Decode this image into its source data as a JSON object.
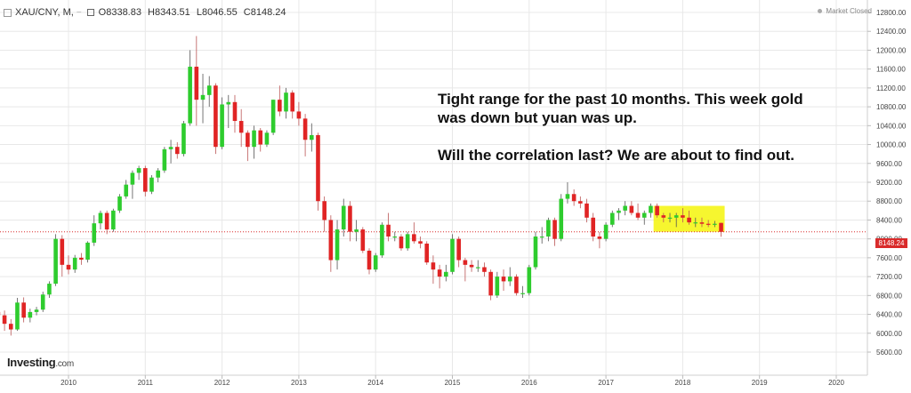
{
  "header": {
    "symbol": "XAU/CNY, M,",
    "ohlc": {
      "open": "O8338.83",
      "high": "H8343.51",
      "low": "L8046.55",
      "close": "C8148.24"
    }
  },
  "market_status": "Market Closed",
  "annotation": {
    "line1": "Tight range for the past 10 months. This week gold",
    "line2": "was down but yuan was up.",
    "line3": "Will the correlation last? We are about to find out."
  },
  "brand": {
    "name": "Investing",
    "suffix": ".com"
  },
  "last_price_label": "8148.24",
  "colors": {
    "up": "#2ecc2e",
    "down": "#e02424",
    "highlight": "#f5f50a",
    "price_line": "#d92b2b",
    "grid": "#e8e8e8"
  },
  "chart_data": {
    "type": "candlestick",
    "interval": "monthly",
    "title": "XAU/CNY, M,",
    "ylim": [
      5600,
      12800
    ],
    "y_ticks": [
      "12800.00",
      "12400.00",
      "12000.00",
      "11600.00",
      "11200.00",
      "10800.00",
      "10400.00",
      "10000.00",
      "9600.00",
      "9200.00",
      "8800.00",
      "8400.00",
      "8000.00",
      "7600.00",
      "7200.00",
      "6800.00",
      "6400.00",
      "6000.00",
      "5600.00"
    ],
    "x_ticks": [
      "2010",
      "2011",
      "2012",
      "2013",
      "2014",
      "2015",
      "2016",
      "2017",
      "2018",
      "2019",
      "2020"
    ],
    "last_price": 8148.24,
    "highlight_range": {
      "from": "2017-09",
      "to": "2018-07",
      "low": 8150,
      "high": 8700
    },
    "candles": [
      {
        "date": "2009-01",
        "o": 6250,
        "h": 6680,
        "l": 6180,
        "c": 6450
      },
      {
        "date": "2009-02",
        "o": 6450,
        "h": 6700,
        "l": 6300,
        "c": 6380
      },
      {
        "date": "2009-03",
        "o": 6380,
        "h": 6480,
        "l": 6050,
        "c": 6200
      },
      {
        "date": "2009-04",
        "o": 6200,
        "h": 6300,
        "l": 5950,
        "c": 6080
      },
      {
        "date": "2009-05",
        "o": 6080,
        "h": 6750,
        "l": 6050,
        "c": 6650
      },
      {
        "date": "2009-06",
        "o": 6650,
        "h": 6760,
        "l": 6230,
        "c": 6330
      },
      {
        "date": "2009-07",
        "o": 6330,
        "h": 6520,
        "l": 6230,
        "c": 6450
      },
      {
        "date": "2009-08",
        "o": 6450,
        "h": 6560,
        "l": 6380,
        "c": 6500
      },
      {
        "date": "2009-09",
        "o": 6500,
        "h": 6880,
        "l": 6450,
        "c": 6820
      },
      {
        "date": "2009-10",
        "o": 6820,
        "h": 7100,
        "l": 6750,
        "c": 7050
      },
      {
        "date": "2009-11",
        "o": 7050,
        "h": 8100,
        "l": 7000,
        "c": 8000
      },
      {
        "date": "2009-12",
        "o": 8000,
        "h": 8080,
        "l": 7200,
        "c": 7450
      },
      {
        "date": "2010-01",
        "o": 7450,
        "h": 7650,
        "l": 7250,
        "c": 7350
      },
      {
        "date": "2010-02",
        "o": 7350,
        "h": 7660,
        "l": 7280,
        "c": 7600
      },
      {
        "date": "2010-03",
        "o": 7600,
        "h": 7700,
        "l": 7450,
        "c": 7560
      },
      {
        "date": "2010-04",
        "o": 7560,
        "h": 7950,
        "l": 7500,
        "c": 7920
      },
      {
        "date": "2010-05",
        "o": 7920,
        "h": 8500,
        "l": 7850,
        "c": 8330
      },
      {
        "date": "2010-06",
        "o": 8330,
        "h": 8600,
        "l": 8200,
        "c": 8550
      },
      {
        "date": "2010-07",
        "o": 8550,
        "h": 8600,
        "l": 8100,
        "c": 8200
      },
      {
        "date": "2010-08",
        "o": 8200,
        "h": 8640,
        "l": 8150,
        "c": 8600
      },
      {
        "date": "2010-09",
        "o": 8600,
        "h": 8950,
        "l": 8550,
        "c": 8900
      },
      {
        "date": "2010-10",
        "o": 8900,
        "h": 9250,
        "l": 8850,
        "c": 9150
      },
      {
        "date": "2010-11",
        "o": 9150,
        "h": 9450,
        "l": 8850,
        "c": 9400
      },
      {
        "date": "2010-12",
        "o": 9400,
        "h": 9550,
        "l": 9250,
        "c": 9500
      },
      {
        "date": "2011-01",
        "o": 9500,
        "h": 9550,
        "l": 8900,
        "c": 9000
      },
      {
        "date": "2011-02",
        "o": 9000,
        "h": 9350,
        "l": 8950,
        "c": 9300
      },
      {
        "date": "2011-03",
        "o": 9300,
        "h": 9500,
        "l": 9200,
        "c": 9450
      },
      {
        "date": "2011-04",
        "o": 9450,
        "h": 9950,
        "l": 9400,
        "c": 9900
      },
      {
        "date": "2011-05",
        "o": 9900,
        "h": 10100,
        "l": 9600,
        "c": 9950
      },
      {
        "date": "2011-06",
        "o": 9950,
        "h": 10050,
        "l": 9700,
        "c": 9800
      },
      {
        "date": "2011-07",
        "o": 9800,
        "h": 10500,
        "l": 9750,
        "c": 10450
      },
      {
        "date": "2011-08",
        "o": 10450,
        "h": 12000,
        "l": 10400,
        "c": 11650
      },
      {
        "date": "2011-09",
        "o": 11650,
        "h": 12300,
        "l": 10400,
        "c": 10950
      },
      {
        "date": "2011-10",
        "o": 10950,
        "h": 11500,
        "l": 10450,
        "c": 11050
      },
      {
        "date": "2011-11",
        "o": 11050,
        "h": 11450,
        "l": 10800,
        "c": 11250
      },
      {
        "date": "2011-12",
        "o": 11250,
        "h": 11300,
        "l": 9800,
        "c": 9950
      },
      {
        "date": "2012-01",
        "o": 9950,
        "h": 11000,
        "l": 9900,
        "c": 10850
      },
      {
        "date": "2012-02",
        "o": 10850,
        "h": 11050,
        "l": 10350,
        "c": 10900
      },
      {
        "date": "2012-03",
        "o": 10900,
        "h": 11050,
        "l": 10250,
        "c": 10500
      },
      {
        "date": "2012-04",
        "o": 10500,
        "h": 10750,
        "l": 9950,
        "c": 10250
      },
      {
        "date": "2012-05",
        "o": 10250,
        "h": 10300,
        "l": 9650,
        "c": 9950
      },
      {
        "date": "2012-06",
        "o": 9950,
        "h": 10400,
        "l": 9700,
        "c": 10300
      },
      {
        "date": "2012-07",
        "o": 10300,
        "h": 10350,
        "l": 9850,
        "c": 10000
      },
      {
        "date": "2012-08",
        "o": 10000,
        "h": 10300,
        "l": 9950,
        "c": 10250
      },
      {
        "date": "2012-09",
        "o": 10250,
        "h": 10950,
        "l": 10200,
        "c": 10950
      },
      {
        "date": "2012-10",
        "o": 10950,
        "h": 11250,
        "l": 10600,
        "c": 10700
      },
      {
        "date": "2012-11",
        "o": 10700,
        "h": 11200,
        "l": 10550,
        "c": 11100
      },
      {
        "date": "2012-12",
        "o": 11100,
        "h": 11150,
        "l": 10550,
        "c": 10700
      },
      {
        "date": "2013-01",
        "o": 10700,
        "h": 10900,
        "l": 10400,
        "c": 10550
      },
      {
        "date": "2013-02",
        "o": 10550,
        "h": 10650,
        "l": 9750,
        "c": 10100
      },
      {
        "date": "2013-03",
        "o": 10100,
        "h": 10450,
        "l": 9850,
        "c": 10200
      },
      {
        "date": "2013-04",
        "o": 10200,
        "h": 10250,
        "l": 8600,
        "c": 8800
      },
      {
        "date": "2013-05",
        "o": 8800,
        "h": 8900,
        "l": 8150,
        "c": 8400
      },
      {
        "date": "2013-06",
        "o": 8400,
        "h": 8500,
        "l": 7300,
        "c": 7550
      },
      {
        "date": "2013-07",
        "o": 7550,
        "h": 8400,
        "l": 7350,
        "c": 8200
      },
      {
        "date": "2013-08",
        "o": 8200,
        "h": 8850,
        "l": 8050,
        "c": 8700
      },
      {
        "date": "2013-09",
        "o": 8700,
        "h": 8800,
        "l": 7950,
        "c": 8150
      },
      {
        "date": "2013-10",
        "o": 8150,
        "h": 8400,
        "l": 7950,
        "c": 8200
      },
      {
        "date": "2013-11",
        "o": 8200,
        "h": 8250,
        "l": 7700,
        "c": 7750
      },
      {
        "date": "2013-12",
        "o": 7750,
        "h": 7800,
        "l": 7250,
        "c": 7350
      },
      {
        "date": "2014-01",
        "o": 7350,
        "h": 7700,
        "l": 7300,
        "c": 7650
      },
      {
        "date": "2014-02",
        "o": 7650,
        "h": 8350,
        "l": 7600,
        "c": 8300
      },
      {
        "date": "2014-03",
        "o": 8300,
        "h": 8550,
        "l": 7950,
        "c": 8050
      },
      {
        "date": "2014-04",
        "o": 8050,
        "h": 8150,
        "l": 7950,
        "c": 8050
      },
      {
        "date": "2014-05",
        "o": 8050,
        "h": 8100,
        "l": 7750,
        "c": 7800
      },
      {
        "date": "2014-06",
        "o": 7800,
        "h": 8150,
        "l": 7750,
        "c": 8100
      },
      {
        "date": "2014-07",
        "o": 8100,
        "h": 8350,
        "l": 7900,
        "c": 7950
      },
      {
        "date": "2014-08",
        "o": 7950,
        "h": 8050,
        "l": 7800,
        "c": 7900
      },
      {
        "date": "2014-09",
        "o": 7900,
        "h": 7950,
        "l": 7450,
        "c": 7500
      },
      {
        "date": "2014-10",
        "o": 7500,
        "h": 7650,
        "l": 7050,
        "c": 7350
      },
      {
        "date": "2014-11",
        "o": 7350,
        "h": 7450,
        "l": 6950,
        "c": 7200
      },
      {
        "date": "2014-12",
        "o": 7200,
        "h": 7450,
        "l": 7100,
        "c": 7300
      },
      {
        "date": "2015-01",
        "o": 7300,
        "h": 8100,
        "l": 7250,
        "c": 8000
      },
      {
        "date": "2015-02",
        "o": 8000,
        "h": 8050,
        "l": 7400,
        "c": 7550
      },
      {
        "date": "2015-03",
        "o": 7550,
        "h": 7600,
        "l": 7100,
        "c": 7450
      },
      {
        "date": "2015-04",
        "o": 7450,
        "h": 7550,
        "l": 7300,
        "c": 7400
      },
      {
        "date": "2015-05",
        "o": 7400,
        "h": 7550,
        "l": 7300,
        "c": 7400
      },
      {
        "date": "2015-06",
        "o": 7400,
        "h": 7500,
        "l": 7200,
        "c": 7300
      },
      {
        "date": "2015-07",
        "o": 7300,
        "h": 7350,
        "l": 6700,
        "c": 6800
      },
      {
        "date": "2015-08",
        "o": 6800,
        "h": 7300,
        "l": 6750,
        "c": 7200
      },
      {
        "date": "2015-09",
        "o": 7200,
        "h": 7350,
        "l": 6900,
        "c": 7100
      },
      {
        "date": "2015-10",
        "o": 7100,
        "h": 7400,
        "l": 7000,
        "c": 7200
      },
      {
        "date": "2015-11",
        "o": 7200,
        "h": 7250,
        "l": 6800,
        "c": 6850
      },
      {
        "date": "2015-12",
        "o": 6850,
        "h": 7000,
        "l": 6750,
        "c": 6850
      },
      {
        "date": "2016-01",
        "o": 6850,
        "h": 7450,
        "l": 6800,
        "c": 7400
      },
      {
        "date": "2016-02",
        "o": 7400,
        "h": 8150,
        "l": 7350,
        "c": 8050
      },
      {
        "date": "2016-03",
        "o": 8050,
        "h": 8250,
        "l": 7900,
        "c": 8050
      },
      {
        "date": "2016-04",
        "o": 8050,
        "h": 8450,
        "l": 7950,
        "c": 8400
      },
      {
        "date": "2016-05",
        "o": 8400,
        "h": 8450,
        "l": 7850,
        "c": 8000
      },
      {
        "date": "2016-06",
        "o": 8000,
        "h": 8950,
        "l": 7950,
        "c": 8850
      },
      {
        "date": "2016-07",
        "o": 8850,
        "h": 9200,
        "l": 8750,
        "c": 8950
      },
      {
        "date": "2016-08",
        "o": 8950,
        "h": 9050,
        "l": 8700,
        "c": 8800
      },
      {
        "date": "2016-09",
        "o": 8800,
        "h": 8900,
        "l": 8650,
        "c": 8750
      },
      {
        "date": "2016-10",
        "o": 8750,
        "h": 8850,
        "l": 8350,
        "c": 8450
      },
      {
        "date": "2016-11",
        "o": 8450,
        "h": 8550,
        "l": 7950,
        "c": 8050
      },
      {
        "date": "2016-12",
        "o": 8050,
        "h": 8150,
        "l": 7800,
        "c": 8000
      },
      {
        "date": "2017-01",
        "o": 8000,
        "h": 8350,
        "l": 7950,
        "c": 8300
      },
      {
        "date": "2017-02",
        "o": 8300,
        "h": 8600,
        "l": 8250,
        "c": 8550
      },
      {
        "date": "2017-03",
        "o": 8550,
        "h": 8650,
        "l": 8400,
        "c": 8600
      },
      {
        "date": "2017-04",
        "o": 8600,
        "h": 8800,
        "l": 8500,
        "c": 8700
      },
      {
        "date": "2017-05",
        "o": 8700,
        "h": 8800,
        "l": 8500,
        "c": 8550
      },
      {
        "date": "2017-06",
        "o": 8550,
        "h": 8750,
        "l": 8400,
        "c": 8450
      },
      {
        "date": "2017-07",
        "o": 8450,
        "h": 8600,
        "l": 8300,
        "c": 8550
      },
      {
        "date": "2017-08",
        "o": 8550,
        "h": 8750,
        "l": 8450,
        "c": 8700
      },
      {
        "date": "2017-09",
        "o": 8700,
        "h": 8750,
        "l": 8450,
        "c": 8500
      },
      {
        "date": "2017-10",
        "o": 8500,
        "h": 8550,
        "l": 8350,
        "c": 8450
      },
      {
        "date": "2017-11",
        "o": 8450,
        "h": 8550,
        "l": 8350,
        "c": 8450
      },
      {
        "date": "2017-12",
        "o": 8450,
        "h": 8550,
        "l": 8250,
        "c": 8500
      },
      {
        "date": "2018-01",
        "o": 8500,
        "h": 8650,
        "l": 8350,
        "c": 8450
      },
      {
        "date": "2018-02",
        "o": 8450,
        "h": 8600,
        "l": 8300,
        "c": 8350
      },
      {
        "date": "2018-03",
        "o": 8350,
        "h": 8450,
        "l": 8250,
        "c": 8350
      },
      {
        "date": "2018-04",
        "o": 8350,
        "h": 8450,
        "l": 8250,
        "c": 8320
      },
      {
        "date": "2018-05",
        "o": 8320,
        "h": 8400,
        "l": 8250,
        "c": 8300
      },
      {
        "date": "2018-06",
        "o": 8300,
        "h": 8380,
        "l": 8250,
        "c": 8320
      },
      {
        "date": "2018-07",
        "o": 8338.83,
        "h": 8343.51,
        "l": 8046.55,
        "c": 8148.24
      }
    ]
  }
}
